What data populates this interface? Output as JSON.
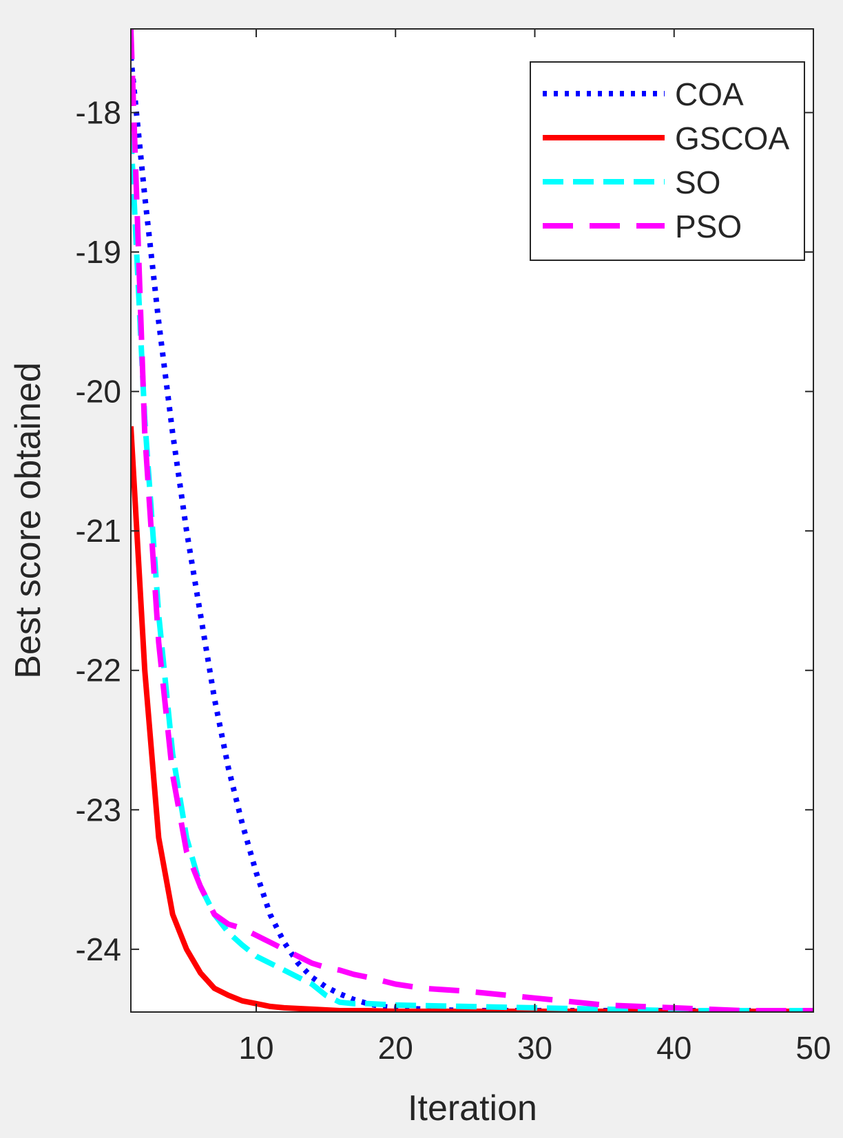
{
  "chart_data": {
    "type": "line",
    "title": "",
    "xlabel": "Iteration",
    "ylabel": "Best score obtained",
    "xlim": [
      1,
      50
    ],
    "ylim": [
      -24.45,
      -17.4
    ],
    "xticks": [
      10,
      20,
      30,
      40,
      50
    ],
    "yticks": [
      -18,
      -19,
      -20,
      -21,
      -22,
      -23,
      -24
    ],
    "grid": false,
    "legend_position": "top-right",
    "series": [
      {
        "name": "COA",
        "color": "#0000ff",
        "style": "dotted",
        "x": [
          1,
          2,
          3,
          4,
          5,
          6,
          7,
          8,
          9,
          10,
          11,
          12,
          13,
          14,
          15,
          16,
          17,
          18,
          19,
          20,
          22,
          25,
          30,
          35,
          40,
          45,
          50
        ],
        "y": [
          -17.6,
          -18.6,
          -19.5,
          -20.3,
          -21.0,
          -21.6,
          -22.2,
          -22.7,
          -23.1,
          -23.45,
          -23.75,
          -23.95,
          -24.1,
          -24.2,
          -24.27,
          -24.32,
          -24.36,
          -24.39,
          -24.41,
          -24.42,
          -24.43,
          -24.44,
          -24.44,
          -24.44,
          -24.44,
          -24.44,
          -24.44
        ]
      },
      {
        "name": "GSCOA",
        "color": "#ff0000",
        "style": "solid",
        "x": [
          1,
          2,
          3,
          4,
          5,
          6,
          7,
          8,
          9,
          10,
          11,
          12,
          14,
          16,
          18,
          20,
          25,
          30,
          35,
          40,
          45,
          50
        ],
        "y": [
          -20.25,
          -22.0,
          -23.2,
          -23.75,
          -24.0,
          -24.17,
          -24.28,
          -24.33,
          -24.37,
          -24.39,
          -24.41,
          -24.42,
          -24.43,
          -24.44,
          -24.44,
          -24.445,
          -24.445,
          -24.445,
          -24.445,
          -24.445,
          -24.445,
          -24.445
        ]
      },
      {
        "name": "SO",
        "color": "#00ffff",
        "style": "dashed",
        "x": [
          1,
          2,
          3,
          4,
          5,
          6,
          7,
          8,
          9,
          10,
          11,
          12,
          13,
          14,
          15,
          16,
          17,
          18,
          20,
          25,
          30,
          35,
          40,
          45,
          50
        ],
        "y": [
          -18.15,
          -20.2,
          -21.6,
          -22.6,
          -23.2,
          -23.55,
          -23.75,
          -23.88,
          -23.97,
          -24.05,
          -24.1,
          -24.15,
          -24.2,
          -24.25,
          -24.33,
          -24.38,
          -24.39,
          -24.39,
          -24.4,
          -24.41,
          -24.42,
          -24.43,
          -24.44,
          -24.44,
          -24.44
        ]
      },
      {
        "name": "PSO",
        "color": "#ff00ff",
        "style": "dashed-long",
        "x": [
          1,
          2,
          3,
          4,
          5,
          6,
          7,
          8,
          9,
          10,
          11,
          12,
          13,
          14,
          15,
          16,
          17,
          18,
          20,
          22,
          25,
          30,
          35,
          40,
          45,
          50
        ],
        "y": [
          -17.4,
          -20.3,
          -21.8,
          -22.75,
          -23.3,
          -23.55,
          -23.75,
          -23.82,
          -23.85,
          -23.9,
          -23.95,
          -24.0,
          -24.05,
          -24.1,
          -24.13,
          -24.15,
          -24.18,
          -24.2,
          -24.25,
          -24.28,
          -24.3,
          -24.35,
          -24.4,
          -24.42,
          -24.44,
          -24.44
        ]
      }
    ]
  }
}
